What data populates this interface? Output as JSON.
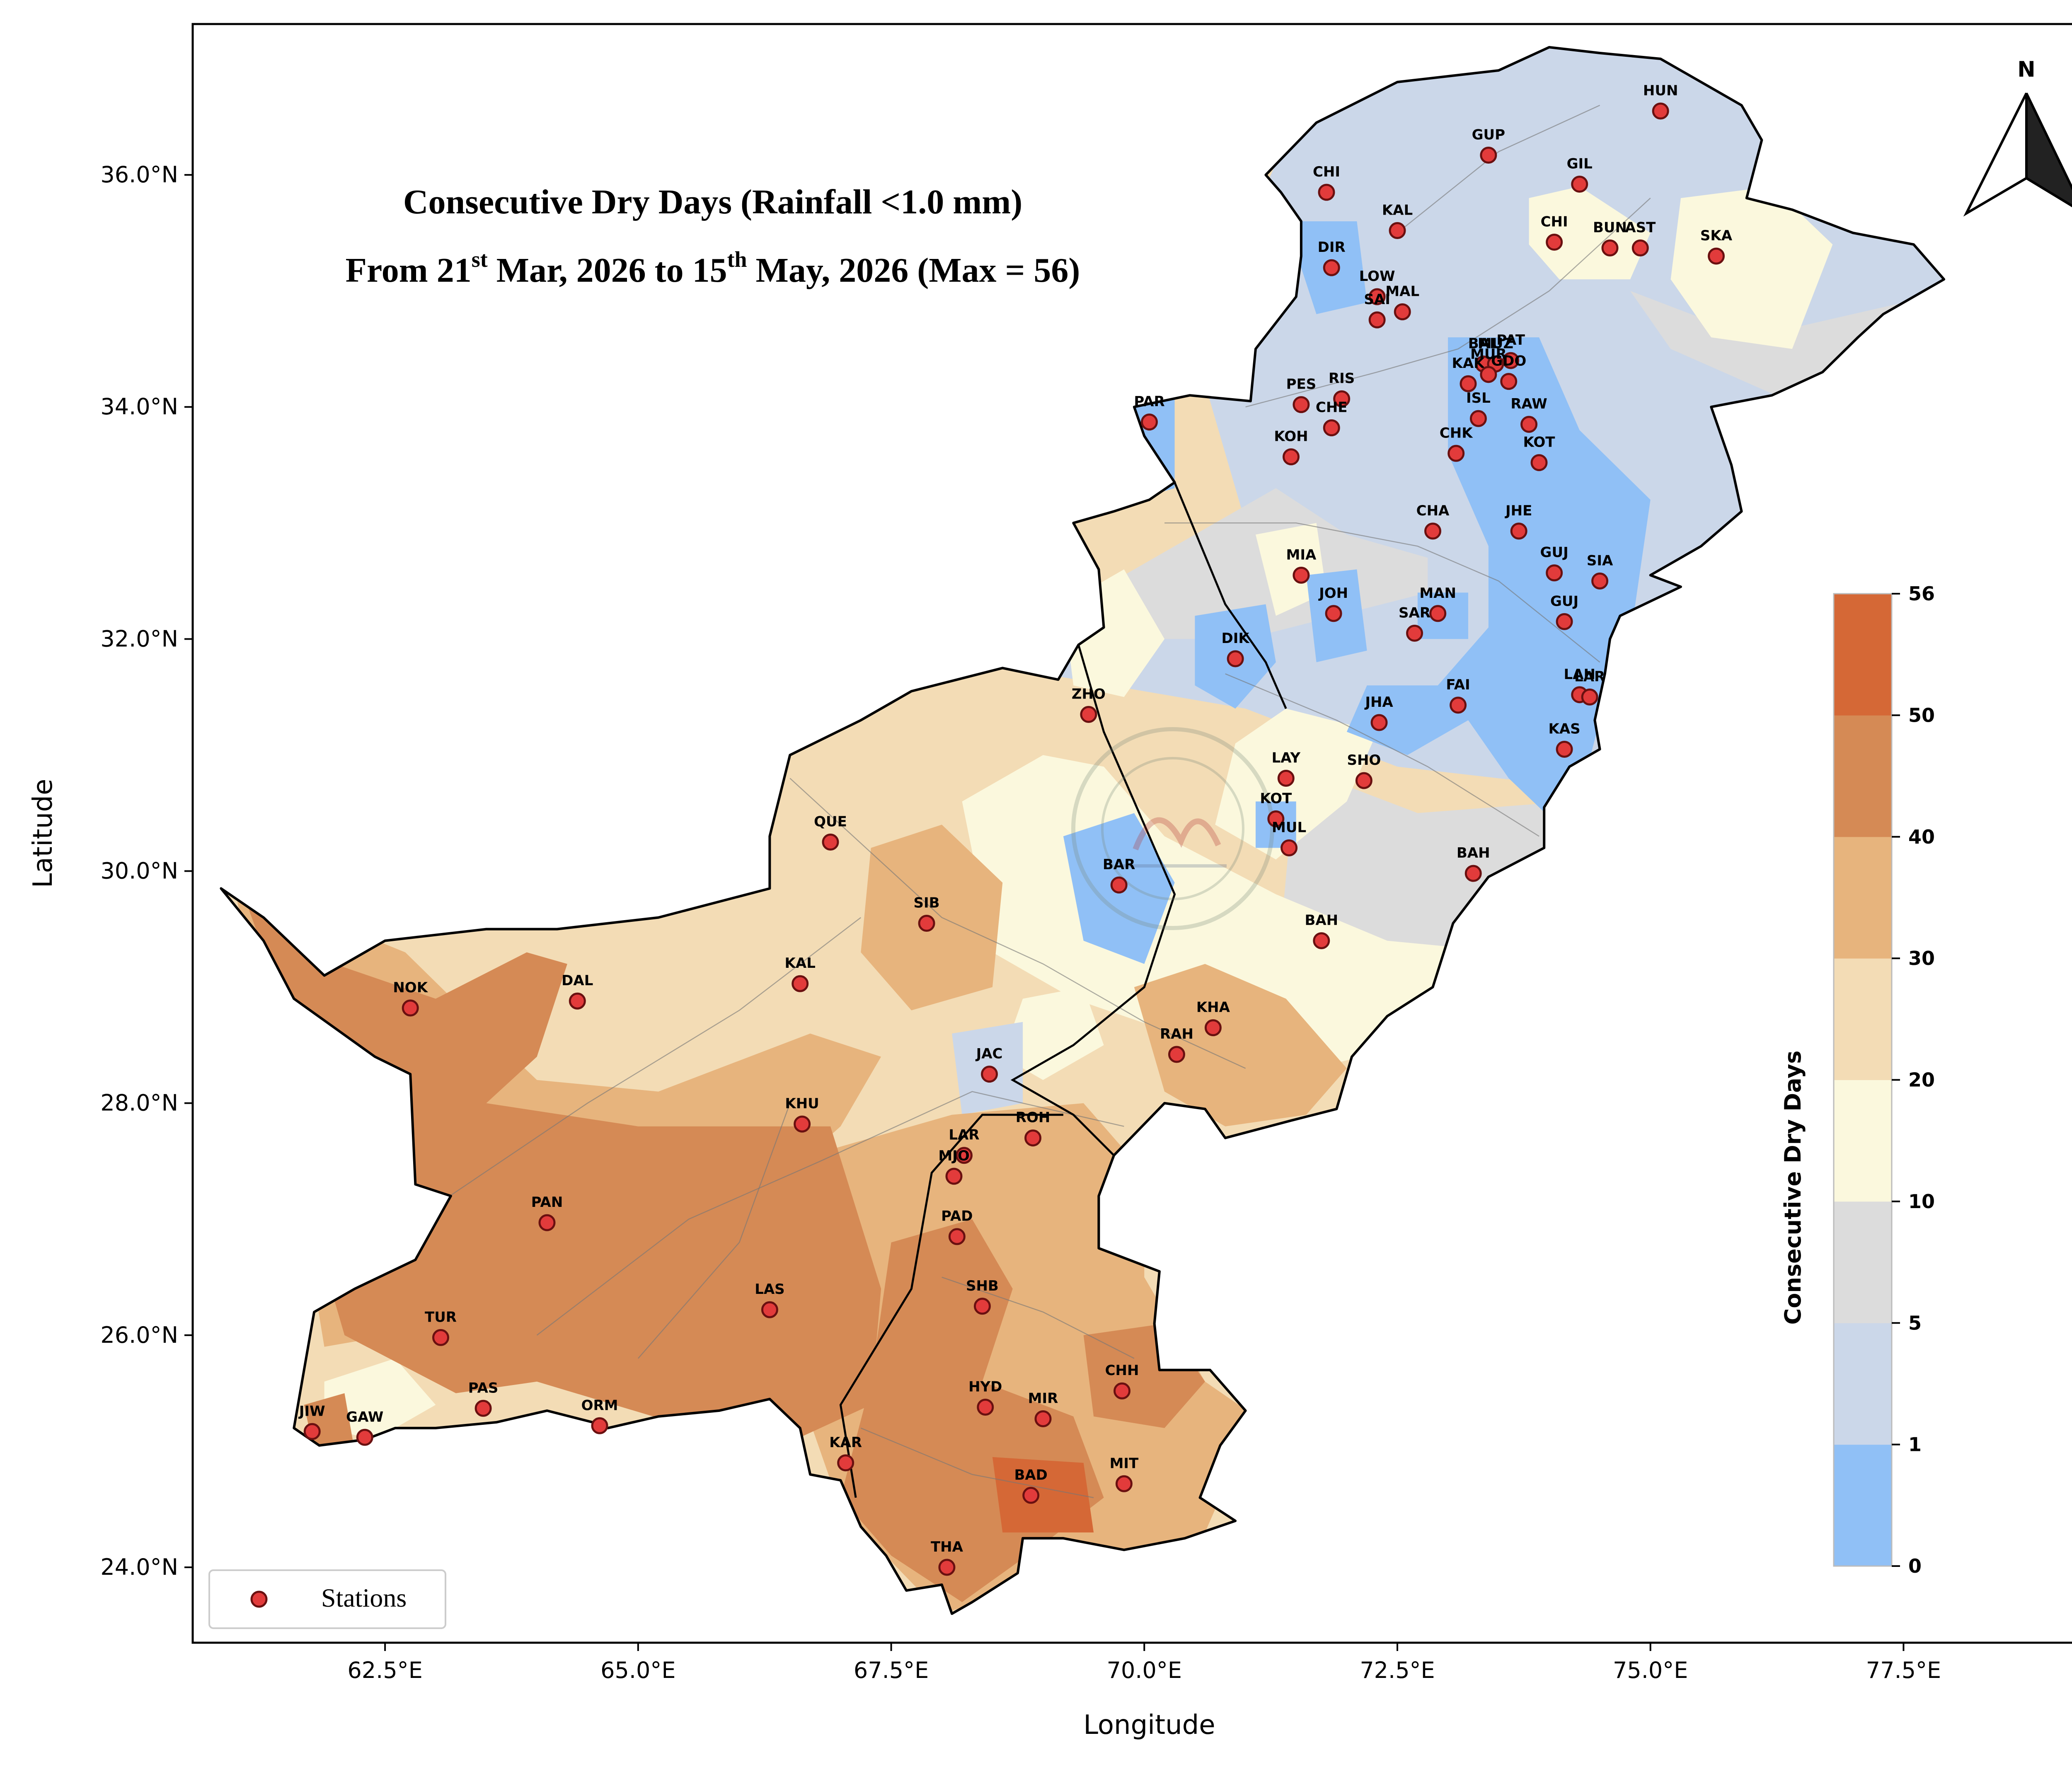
{
  "title": {
    "line1": "Consecutive Dry Days (Rainfall <1.0 mm)",
    "line2_part1": "From 21",
    "line2_sup1": "st",
    "line2_part2": " Mar, 2026 to 15",
    "line2_sup2": "th",
    "line2_part3": " May, 2026 (Max = 56)"
  },
  "axes": {
    "xlabel": "Longitude",
    "ylabel": "Latitude",
    "xlim": [
      60.6,
      79.5
    ],
    "ylim": [
      23.35,
      37.3
    ],
    "xticks": [
      {
        "value": 62.5,
        "label": "62.5°E"
      },
      {
        "value": 65.0,
        "label": "65.0°E"
      },
      {
        "value": 67.5,
        "label": "67.5°E"
      },
      {
        "value": 70.0,
        "label": "70.0°E"
      },
      {
        "value": 72.5,
        "label": "72.5°E"
      },
      {
        "value": 75.0,
        "label": "75.0°E"
      },
      {
        "value": 77.5,
        "label": "77.5°E"
      }
    ],
    "yticks": [
      {
        "value": 24.0,
        "label": "24.0°N"
      },
      {
        "value": 26.0,
        "label": "26.0°N"
      },
      {
        "value": 28.0,
        "label": "28.0°N"
      },
      {
        "value": 30.0,
        "label": "30.0°N"
      },
      {
        "value": 32.0,
        "label": "32.0°N"
      },
      {
        "value": 34.0,
        "label": "34.0°N"
      },
      {
        "value": 36.0,
        "label": "36.0°N"
      }
    ]
  },
  "north_arrow": {
    "label": "N"
  },
  "legend": {
    "label": "Stations"
  },
  "colorbar": {
    "label": "Consecutive Dry Days",
    "bins": [
      {
        "from": 0,
        "to": 1,
        "color": "#90c0f6"
      },
      {
        "from": 1,
        "to": 5,
        "color": "#cbd7e9"
      },
      {
        "from": 5,
        "to": 10,
        "color": "#dcdcdc"
      },
      {
        "from": 10,
        "to": 20,
        "color": "#fbf8dd"
      },
      {
        "from": 20,
        "to": 30,
        "color": "#f3dcb5"
      },
      {
        "from": 30,
        "to": 40,
        "color": "#e7b47d"
      },
      {
        "from": 40,
        "to": 50,
        "color": "#d58a55"
      },
      {
        "from": 50,
        "to": 56,
        "color": "#d56836"
      }
    ],
    "ticks": [
      "0",
      "1",
      "5",
      "10",
      "20",
      "30",
      "40",
      "50",
      "56"
    ]
  },
  "colors": {
    "station_fill": "#e23b3b",
    "station_edge": "#6a1010",
    "border": "#000000"
  },
  "chart_data": {
    "type": "scatter",
    "stations": [
      {
        "code": "CHI",
        "lon": 71.8,
        "lat": 35.85
      },
      {
        "code": "GUP",
        "lon": 73.4,
        "lat": 36.17
      },
      {
        "code": "HUN",
        "lon": 75.1,
        "lat": 36.55
      },
      {
        "code": "GIL",
        "lon": 74.3,
        "lat": 35.92
      },
      {
        "code": "KAL",
        "lon": 72.5,
        "lat": 35.52
      },
      {
        "code": "DIR",
        "lon": 71.85,
        "lat": 35.2
      },
      {
        "code": "LOW",
        "lon": 72.3,
        "lat": 34.95
      },
      {
        "code": "CHI",
        "lon": 74.05,
        "lat": 35.42
      },
      {
        "code": "BUN",
        "lon": 74.6,
        "lat": 35.37
      },
      {
        "code": "AST",
        "lon": 74.9,
        "lat": 35.37
      },
      {
        "code": "SKA",
        "lon": 75.65,
        "lat": 35.3
      },
      {
        "code": "SAI",
        "lon": 72.3,
        "lat": 34.75
      },
      {
        "code": "MAL",
        "lon": 72.55,
        "lat": 34.82
      },
      {
        "code": "BAL",
        "lon": 73.35,
        "lat": 34.37
      },
      {
        "code": "MUZ",
        "lon": 73.47,
        "lat": 34.37
      },
      {
        "code": "PAT",
        "lon": 73.62,
        "lat": 34.4
      },
      {
        "code": "KAK",
        "lon": 73.2,
        "lat": 34.2
      },
      {
        "code": "GDO",
        "lon": 73.6,
        "lat": 34.22
      },
      {
        "code": "MUR",
        "lon": 73.4,
        "lat": 34.28
      },
      {
        "code": "PES",
        "lon": 71.55,
        "lat": 34.02
      },
      {
        "code": "RIS",
        "lon": 71.95,
        "lat": 34.07
      },
      {
        "code": "CHE",
        "lon": 71.85,
        "lat": 33.82
      },
      {
        "code": "ISL",
        "lon": 73.3,
        "lat": 33.9
      },
      {
        "code": "RAW",
        "lon": 73.8,
        "lat": 33.85
      },
      {
        "code": "PAR",
        "lon": 70.05,
        "lat": 33.87
      },
      {
        "code": "KOH",
        "lon": 71.45,
        "lat": 33.57
      },
      {
        "code": "CHK",
        "lon": 73.08,
        "lat": 33.6
      },
      {
        "code": "KOT",
        "lon": 73.9,
        "lat": 33.52
      },
      {
        "code": "CHA",
        "lon": 72.85,
        "lat": 32.93
      },
      {
        "code": "JHE",
        "lon": 73.7,
        "lat": 32.93
      },
      {
        "code": "MIA",
        "lon": 71.55,
        "lat": 32.55
      },
      {
        "code": "GUJ",
        "lon": 74.05,
        "lat": 32.57
      },
      {
        "code": "SIA",
        "lon": 74.5,
        "lat": 32.5
      },
      {
        "code": "JOH",
        "lon": 71.87,
        "lat": 32.22
      },
      {
        "code": "MAN",
        "lon": 72.9,
        "lat": 32.22
      },
      {
        "code": "SAR",
        "lon": 72.67,
        "lat": 32.05
      },
      {
        "code": "GUJ",
        "lon": 74.15,
        "lat": 32.15
      },
      {
        "code": "DIK",
        "lon": 70.9,
        "lat": 31.83
      },
      {
        "code": "FAI",
        "lon": 73.1,
        "lat": 31.43
      },
      {
        "code": "LAH",
        "lon": 74.3,
        "lat": 31.52
      },
      {
        "code": "LAR",
        "lon": 74.4,
        "lat": 31.5
      },
      {
        "code": "JHA",
        "lon": 72.32,
        "lat": 31.28
      },
      {
        "code": "ZHO",
        "lon": 69.45,
        "lat": 31.35
      },
      {
        "code": "KAS",
        "lon": 74.15,
        "lat": 31.05
      },
      {
        "code": "LAY",
        "lon": 71.4,
        "lat": 30.8
      },
      {
        "code": "SHO",
        "lon": 72.17,
        "lat": 30.78
      },
      {
        "code": "KOT",
        "lon": 71.3,
        "lat": 30.45
      },
      {
        "code": "MUL",
        "lon": 71.43,
        "lat": 30.2
      },
      {
        "code": "QUE",
        "lon": 66.9,
        "lat": 30.25
      },
      {
        "code": "BAR",
        "lon": 69.75,
        "lat": 29.88
      },
      {
        "code": "BAH",
        "lon": 73.25,
        "lat": 29.98
      },
      {
        "code": "SIB",
        "lon": 67.85,
        "lat": 29.55
      },
      {
        "code": "BAH",
        "lon": 71.75,
        "lat": 29.4
      },
      {
        "code": "KAL",
        "lon": 66.6,
        "lat": 29.03
      },
      {
        "code": "NOK",
        "lon": 62.75,
        "lat": 28.82
      },
      {
        "code": "DAL",
        "lon": 64.4,
        "lat": 28.88
      },
      {
        "code": "KHA",
        "lon": 70.68,
        "lat": 28.65
      },
      {
        "code": "RAH",
        "lon": 70.32,
        "lat": 28.42
      },
      {
        "code": "JAC",
        "lon": 68.47,
        "lat": 28.25
      },
      {
        "code": "KHU",
        "lon": 66.62,
        "lat": 27.82
      },
      {
        "code": "LAR",
        "lon": 68.22,
        "lat": 27.55
      },
      {
        "code": "ROH",
        "lon": 68.9,
        "lat": 27.7
      },
      {
        "code": "MJO",
        "lon": 68.12,
        "lat": 27.37
      },
      {
        "code": "PAN",
        "lon": 64.1,
        "lat": 26.97
      },
      {
        "code": "PAD",
        "lon": 68.15,
        "lat": 26.85
      },
      {
        "code": "LAS",
        "lon": 66.3,
        "lat": 26.22
      },
      {
        "code": "SHB",
        "lon": 68.4,
        "lat": 26.25
      },
      {
        "code": "TUR",
        "lon": 63.05,
        "lat": 25.98
      },
      {
        "code": "CHH",
        "lon": 69.78,
        "lat": 25.52
      },
      {
        "code": "PAS",
        "lon": 63.47,
        "lat": 25.37
      },
      {
        "code": "HYD",
        "lon": 68.43,
        "lat": 25.38
      },
      {
        "code": "MIR",
        "lon": 69.0,
        "lat": 25.28
      },
      {
        "code": "ORM",
        "lon": 64.62,
        "lat": 25.22
      },
      {
        "code": "JIW",
        "lon": 61.78,
        "lat": 25.17
      },
      {
        "code": "GAW",
        "lon": 62.3,
        "lat": 25.12
      },
      {
        "code": "KAR",
        "lon": 67.05,
        "lat": 24.9
      },
      {
        "code": "MIT",
        "lon": 69.8,
        "lat": 24.72
      },
      {
        "code": "BAD",
        "lon": 68.88,
        "lat": 24.62
      },
      {
        "code": "THA",
        "lon": 68.05,
        "lat": 24.0
      }
    ]
  }
}
